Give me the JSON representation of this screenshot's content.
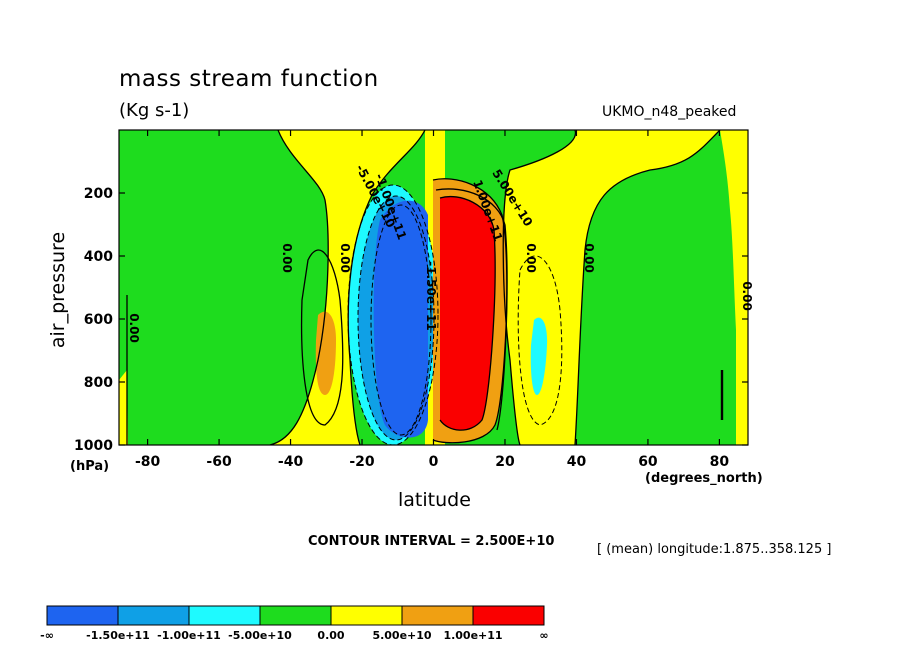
{
  "chart_data": {
    "type": "heatmap",
    "plot_kind": "filled contour",
    "title": "mass stream function",
    "units": "(Kg s-1)",
    "dataset": "UKMO_n48_peaked",
    "xlabel": "latitude",
    "x_units": "(degrees_north)",
    "ylabel": "air_pressure",
    "y_units": "(hPa)",
    "xlim": [
      -88,
      88
    ],
    "ylim": [
      1000,
      0
    ],
    "x_ticks": [
      -80,
      -60,
      -40,
      -20,
      0,
      20,
      40,
      60,
      80
    ],
    "y_ticks": [
      200,
      400,
      600,
      800,
      1000
    ],
    "contour_interval_text": "CONTOUR INTERVAL = 2.500E+10",
    "mean_note": "[ (mean) longitude:1.875..358.125 ]",
    "colorbar": {
      "levels": [
        "-∞",
        "-1.50e+11",
        "-1.00e+11",
        "-5.00e+10",
        "0.00",
        "5.00e+10",
        "1.00e+11",
        "∞"
      ],
      "colors": [
        "#1e64f0",
        "#0fa0e6",
        "#1efaff",
        "#1edc1e",
        "#ffff00",
        "#f0a012",
        "#fa0000"
      ]
    },
    "contour_labels": [
      "0.00",
      "0.00",
      "0.00",
      "0.00",
      "0.00",
      "0.00",
      "-5.00e+10",
      "-1.00e+11",
      "-1.50e+11",
      "5.00e+10",
      "1.00e+11"
    ],
    "features": [
      {
        "sign": "negative",
        "lat_range": [
          -23,
          -2
        ],
        "p_range": [
          200,
          960
        ],
        "min_level": "< -1.50e+11"
      },
      {
        "sign": "positive",
        "lat_range": [
          1,
          22
        ],
        "p_range": [
          180,
          960
        ],
        "max_level": "> 1.00e+11"
      },
      {
        "sign": "positive",
        "lat_range": [
          -34,
          -28
        ],
        "p_range": [
          580,
          850
        ],
        "max_level": "5.00e+10 .. 1.00e+11"
      },
      {
        "sign": "negative",
        "lat_range": [
          28,
          32
        ],
        "p_range": [
          600,
          860
        ],
        "min_level": "-1.00e+11 .. -5.00e+10"
      }
    ]
  }
}
